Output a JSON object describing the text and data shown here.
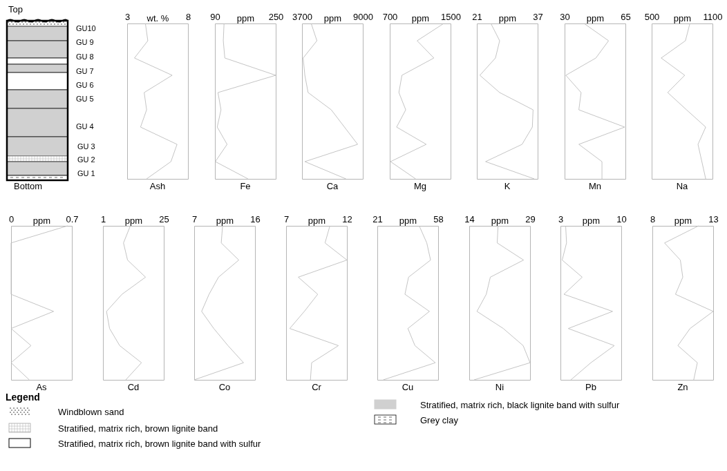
{
  "chart_data": [
    {
      "type": "other",
      "annotations": [
        "Top",
        "GU10",
        "GU 9",
        "GU 8",
        "GU 7",
        "GU 6",
        "GU 5",
        "GU 4",
        "GU 3",
        "GU 2",
        "GU 1",
        "Bottom"
      ]
    },
    {
      "type": "line",
      "title": "Ash",
      "xlabel": "wt. %",
      "orientation": "horizontal",
      "categories": [
        null,
        null,
        null,
        null,
        null,
        null,
        null,
        null,
        null,
        null
      ],
      "values": [
        4.5,
        4.7,
        3.6,
        6.7,
        4.4,
        4.6,
        4.1,
        7.1,
        6.6,
        4.6
      ],
      "xlim": [
        3,
        8
      ],
      "xticks": [
        3,
        8
      ],
      "color": "#bdbdbd"
    },
    {
      "type": "line",
      "title": "Fe",
      "xlabel": "ppm",
      "orientation": "horizontal",
      "categories": [
        null,
        null,
        null,
        null,
        null,
        null,
        null,
        null,
        null,
        null
      ],
      "values": [
        114,
        112,
        116,
        250,
        98,
        106,
        96,
        122,
        91,
        177
      ],
      "xlim": [
        90,
        250
      ],
      "xticks": [
        90,
        250
      ],
      "color": "#bdbdbd"
    },
    {
      "type": "line",
      "title": "Ca",
      "xlabel": "ppm",
      "orientation": "horizontal",
      "categories": [
        null,
        null,
        null,
        null,
        null,
        null,
        null,
        null,
        null,
        null
      ],
      "values": [
        4500,
        5000,
        3800,
        3950,
        4230,
        6250,
        7400,
        8550,
        3950,
        7530
      ],
      "xlim": [
        3700,
        9000
      ],
      "xticks": [
        3700,
        9000
      ],
      "color": "#bdbdbd"
    },
    {
      "type": "line",
      "title": "Mg",
      "xlabel": "ppm",
      "orientation": "horizontal",
      "categories": [
        null,
        null,
        null,
        null,
        null,
        null,
        null,
        null,
        null,
        null
      ],
      "values": [
        1410,
        1060,
        1280,
        860,
        820,
        910,
        790,
        1180,
        710,
        1040
      ],
      "xlim": [
        700,
        1500
      ],
      "xticks": [
        700,
        1500
      ],
      "color": "#bdbdbd"
    },
    {
      "type": "line",
      "title": "K",
      "xlabel": "ppm",
      "orientation": "horizontal",
      "categories": [
        null,
        null,
        null,
        null,
        null,
        null,
        null,
        null,
        null,
        null
      ],
      "values": [
        24.7,
        27.0,
        25.9,
        21.8,
        27.0,
        35.8,
        35.6,
        32.9,
        23.3,
        36.1
      ],
      "xlim": [
        21,
        37
      ],
      "xticks": [
        21,
        37
      ],
      "color": "#bdbdbd"
    },
    {
      "type": "line",
      "title": "Mn",
      "xlabel": "ppm",
      "orientation": "horizontal",
      "categories": [
        null,
        null,
        null,
        null,
        null,
        null,
        null,
        null,
        null,
        null
      ],
      "values": [
        41.2,
        55.3,
        48,
        30.7,
        39.5,
        38.2,
        64.6,
        38.2,
        51.5,
        51.5
      ],
      "xlim": [
        30,
        65
      ],
      "xticks": [
        30,
        65
      ],
      "color": "#bdbdbd"
    },
    {
      "type": "line",
      "title": "Na",
      "xlabel": "ppm",
      "orientation": "horizontal",
      "categories": [
        null,
        null,
        null,
        null,
        null,
        null,
        null,
        null,
        null,
        null
      ],
      "values": [
        877,
        833,
        594,
        826,
        658,
        844,
        1033,
        957,
        995,
        1033
      ],
      "xlim": [
        500,
        1100
      ],
      "xticks": [
        500,
        1100
      ],
      "color": "#bdbdbd"
    },
    {
      "type": "line",
      "title": "As",
      "xlabel": "ppm",
      "orientation": "horizontal",
      "categories": [
        null,
        null,
        null,
        null,
        null,
        null,
        null,
        null,
        null,
        null
      ],
      "values": [
        0.65,
        0,
        0,
        0,
        0,
        0.49,
        0,
        0.23,
        0,
        0.21
      ],
      "xlim": [
        0,
        0.7
      ],
      "xticks": [
        0,
        0.7
      ],
      "color": "#bdbdbd"
    },
    {
      "type": "line",
      "title": "Cd",
      "xlabel": "ppm",
      "orientation": "horizontal",
      "categories": [
        null,
        null,
        null,
        null,
        null,
        null,
        null,
        null,
        null,
        null
      ],
      "values": [
        11.8,
        9.1,
        10.7,
        17.8,
        8.5,
        2.4,
        3.6,
        7.6,
        16.2,
        10.0
      ],
      "xlim": [
        1,
        25
      ],
      "xticks": [
        1,
        25
      ],
      "color": "#bdbdbd"
    },
    {
      "type": "line",
      "title": "Co",
      "xlabel": "ppm",
      "orientation": "horizontal",
      "categories": [
        null,
        null,
        null,
        null,
        null,
        null,
        null,
        null,
        null,
        null
      ],
      "values": [
        11.2,
        11.0,
        13.6,
        10.6,
        9.2,
        8.1,
        9.9,
        12.0,
        14.3,
        7.0
      ],
      "xlim": [
        7,
        16
      ],
      "xticks": [
        7,
        16
      ],
      "color": "#bdbdbd"
    },
    {
      "type": "line",
      "title": "Cr",
      "xlabel": "ppm",
      "orientation": "horizontal",
      "categories": [
        null,
        null,
        null,
        null,
        null,
        null,
        null,
        null,
        null,
        null
      ],
      "values": [
        10.6,
        10.2,
        12,
        8.0,
        9.6,
        8.5,
        7.3,
        11.3,
        9.1,
        9.0
      ],
      "xlim": [
        7,
        12
      ],
      "xticks": [
        7,
        12
      ],
      "color": "#bdbdbd"
    },
    {
      "type": "line",
      "title": "Cu",
      "xlabel": "ppm",
      "orientation": "horizontal",
      "categories": [
        null,
        null,
        null,
        null,
        null,
        null,
        null,
        null,
        null,
        null
      ],
      "values": [
        46.5,
        51.1,
        53.4,
        40,
        37.8,
        52.7,
        39.6,
        43.9,
        56.3,
        24.6
      ],
      "xlim": [
        21,
        58
      ],
      "xticks": [
        21,
        58
      ],
      "color": "#bdbdbd"
    },
    {
      "type": "line",
      "title": "Ni",
      "xlabel": "ppm",
      "orientation": "horizontal",
      "categories": [
        null,
        null,
        null,
        null,
        null,
        null,
        null,
        null,
        null,
        null
      ],
      "values": [
        21.1,
        20.9,
        27.4,
        19.2,
        18.2,
        15.9,
        22.4,
        27.3,
        29,
        15.2
      ],
      "xlim": [
        14,
        29
      ],
      "xticks": [
        14,
        29
      ],
      "color": "#bdbdbd"
    },
    {
      "type": "line",
      "title": "Pb",
      "xlabel": "ppm",
      "orientation": "horizontal",
      "categories": [
        null,
        null,
        null,
        null,
        null,
        null,
        null,
        null,
        null,
        null
      ],
      "values": [
        3.6,
        3.7,
        3.2,
        5.5,
        3.4,
        9.0,
        3.9,
        9.2,
        6.5,
        4.2
      ],
      "xlim": [
        3,
        10
      ],
      "xticks": [
        3,
        10
      ],
      "color": "#bdbdbd"
    },
    {
      "type": "line",
      "title": "Zn",
      "xlabel": "ppm",
      "orientation": "horizontal",
      "categories": [
        null,
        null,
        null,
        null,
        null,
        null,
        null,
        null,
        null,
        null
      ],
      "values": [
        11.8,
        9.0,
        10.3,
        10.5,
        9.9,
        13,
        11.1,
        10.1,
        11.7,
        11.4
      ],
      "xlim": [
        8,
        13
      ],
      "xticks": [
        8,
        13
      ],
      "color": "#bdbdbd"
    },
    {
      "type": "other",
      "title": "Legend",
      "annotations": [
        "Windblown sand",
        "Stratified, matrix rich, brown lignite band",
        "Stratified, matrix rich, brown lignite band with sulfur",
        "Stratified, matrix rich, black lignite band with sulfur",
        "Grey clay"
      ]
    }
  ]
}
